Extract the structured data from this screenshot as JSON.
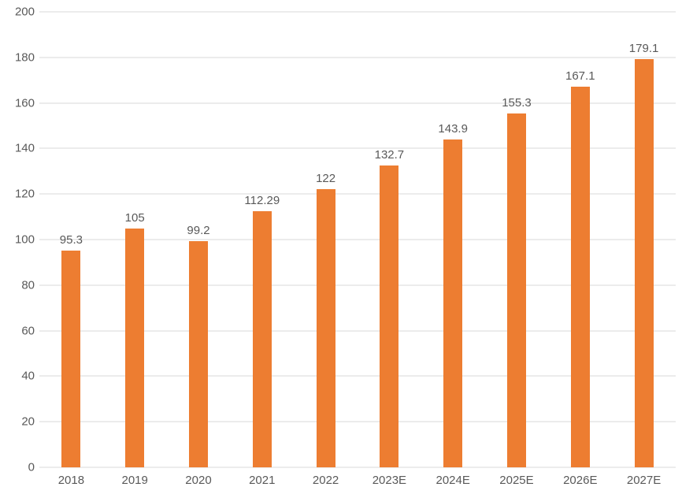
{
  "chart_data": {
    "type": "bar",
    "title": "",
    "xlabel": "",
    "ylabel": "",
    "categories": [
      "2018",
      "2019",
      "2020",
      "2021",
      "2022",
      "2023E",
      "2024E",
      "2025E",
      "2026E",
      "2027E"
    ],
    "values": [
      95.3,
      105,
      99.2,
      112.29,
      122,
      132.7,
      143.9,
      155.3,
      167.1,
      179.1
    ],
    "labels": [
      "95.3",
      "105",
      "99.2",
      "112.29",
      "122",
      "132.7",
      "143.9",
      "155.3",
      "167.1",
      "179.1"
    ],
    "ylim": [
      0,
      200
    ],
    "ytick_interval": 20,
    "yticks": [
      "0",
      "20",
      "40",
      "60",
      "80",
      "100",
      "120",
      "140",
      "160",
      "180",
      "200"
    ],
    "grid": true,
    "legend": false,
    "colors": {
      "bar": "#ED7D31",
      "gridline": "#D9D9D9",
      "axis_line": "#D9D9D9",
      "tick_label": "#595959",
      "data_label": "#595959",
      "background": "#FFFFFF"
    }
  }
}
